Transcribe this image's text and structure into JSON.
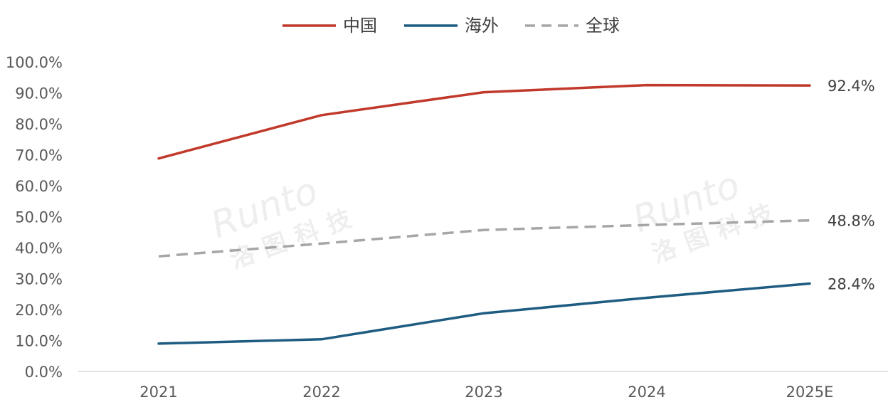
{
  "chart_data": {
    "type": "line",
    "categories": [
      "2021",
      "2022",
      "2023",
      "2024",
      "2025E"
    ],
    "series": [
      {
        "name": "中国",
        "values": [
          68.8,
          82.8,
          90.2,
          92.5,
          92.4
        ],
        "color": "#C0392B",
        "dash": false,
        "end_label": "92.4%"
      },
      {
        "name": "海外",
        "values": [
          9.0,
          10.4,
          18.8,
          23.8,
          28.4
        ],
        "color": "#1F5C82",
        "dash": false,
        "end_label": "28.4%"
      },
      {
        "name": "全球",
        "values": [
          37.2,
          41.3,
          45.7,
          47.3,
          48.8
        ],
        "color": "#A6A6A6",
        "dash": true,
        "end_label": "48.8%"
      }
    ],
    "yticks": [
      "0.0%",
      "10.0%",
      "20.0%",
      "30.0%",
      "40.0%",
      "50.0%",
      "60.0%",
      "70.0%",
      "80.0%",
      "90.0%",
      "100.0%"
    ],
    "ylim": [
      0,
      100
    ],
    "legend_position": "top-center",
    "grid": false
  },
  "watermark": {
    "brand": "Runto",
    "chinese": "洛图科技"
  }
}
